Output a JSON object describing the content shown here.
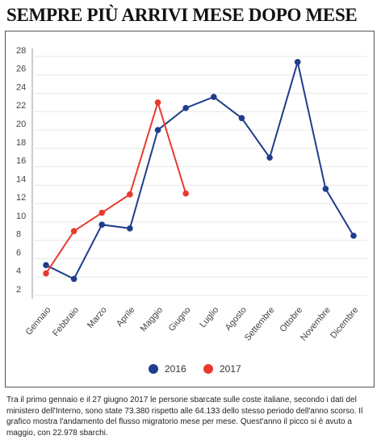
{
  "chart_data": {
    "type": "line",
    "title": "SEMPRE PIÙ ARRIVI MESE DOPO MESE",
    "categories": [
      "Gennaio",
      "Febbraio",
      "Marzo",
      "Aprile",
      "Maggio",
      "Giugno",
      "Luglio",
      "Agosto",
      "Settembre",
      "Ottobre",
      "Novembre",
      "Dicembre"
    ],
    "series": [
      {
        "name": "2016",
        "color": "#1f3d8c",
        "values": [
          5.3,
          3.8,
          9.7,
          9.3,
          20.0,
          22.4,
          23.6,
          21.3,
          17.0,
          27.4,
          13.6,
          8.5
        ]
      },
      {
        "name": "2017",
        "color": "#e8392e",
        "values": [
          4.4,
          9.0,
          11.0,
          13.0,
          23.0,
          13.1,
          null,
          null,
          null,
          null,
          null,
          null
        ]
      }
    ],
    "ylim": [
      2,
      28
    ],
    "yticks": [
      2,
      4,
      6,
      8,
      10,
      12,
      14,
      16,
      18,
      20,
      22,
      24,
      26,
      28
    ],
    "grid": true,
    "legend": "bottom",
    "caption": "Tra il primo gennaio e il 27 giugno 2017 le persone sbarcate sulle coste italiane, secondo i dati del ministero dell'Interno, sono state 73.380 rispetto alle 64.133 dello stesso periodo dell'anno scorso. Il grafico mostra l'andamento del flusso migratorio mese per mese. Quest'anno il picco si è avuto a maggio, con 22.978 sbarchi."
  }
}
